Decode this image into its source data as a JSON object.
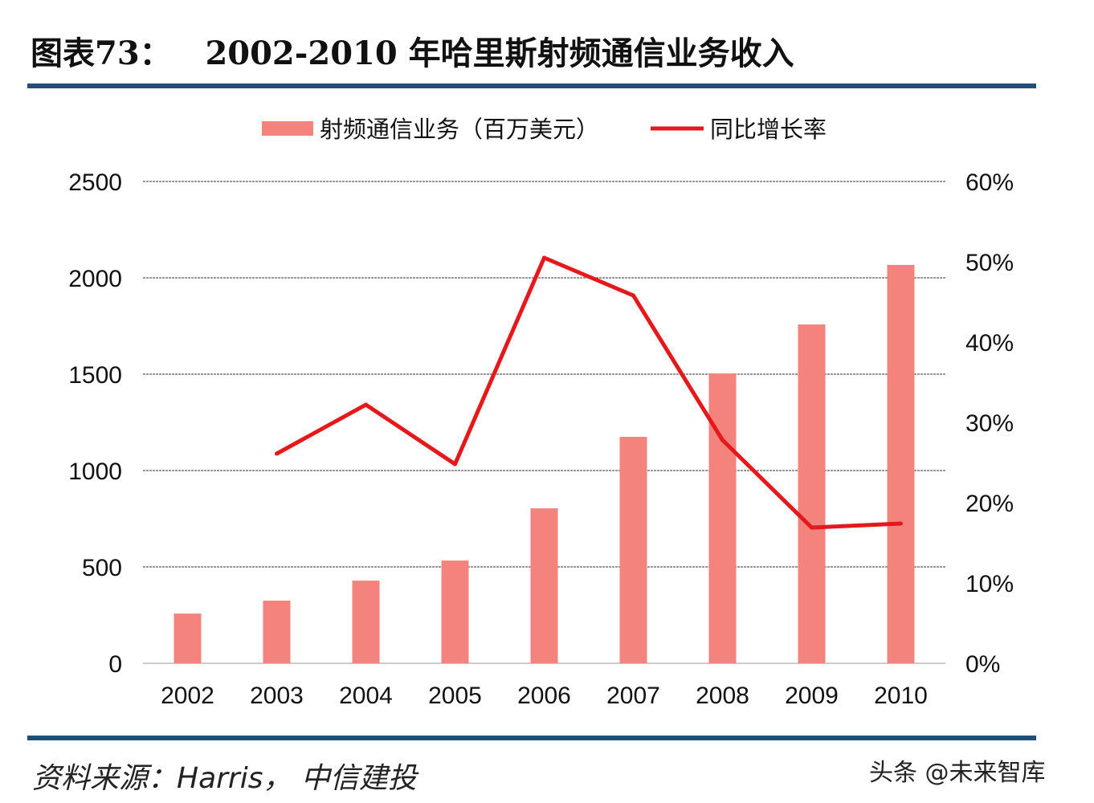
{
  "title": "图表73：   2002-2010 年哈里斯射频通信业务收入",
  "source": "资料来源：Harris， 中信建投",
  "watermark": "头条 @未来智库",
  "chart_data": {
    "type": "bar+line",
    "categories": [
      "2002",
      "2003",
      "2004",
      "2005",
      "2006",
      "2007",
      "2008",
      "2009",
      "2010"
    ],
    "series": [
      {
        "name": "射频通信业务（百万美元）",
        "type": "bar",
        "axis": "left",
        "color": "#f4837d",
        "values": [
          258,
          325,
          429,
          533,
          804,
          1175,
          1504,
          1758,
          2067
        ]
      },
      {
        "name": "同比增长率",
        "type": "line",
        "axis": "right",
        "color": "#e5181c",
        "values": [
          null,
          26.1,
          32.2,
          24.8,
          50.5,
          45.8,
          27.8,
          16.9,
          17.4
        ]
      }
    ],
    "left_axis": {
      "ylim": [
        0,
        2500
      ],
      "ticks": [
        "0",
        "500",
        "1000",
        "1500",
        "2000",
        "2500"
      ]
    },
    "right_axis": {
      "ylim": [
        0,
        60
      ],
      "ticks": [
        "0%",
        "10%",
        "20%",
        "30%",
        "40%",
        "50%",
        "60%"
      ]
    },
    "grid": true,
    "legend": "top"
  }
}
